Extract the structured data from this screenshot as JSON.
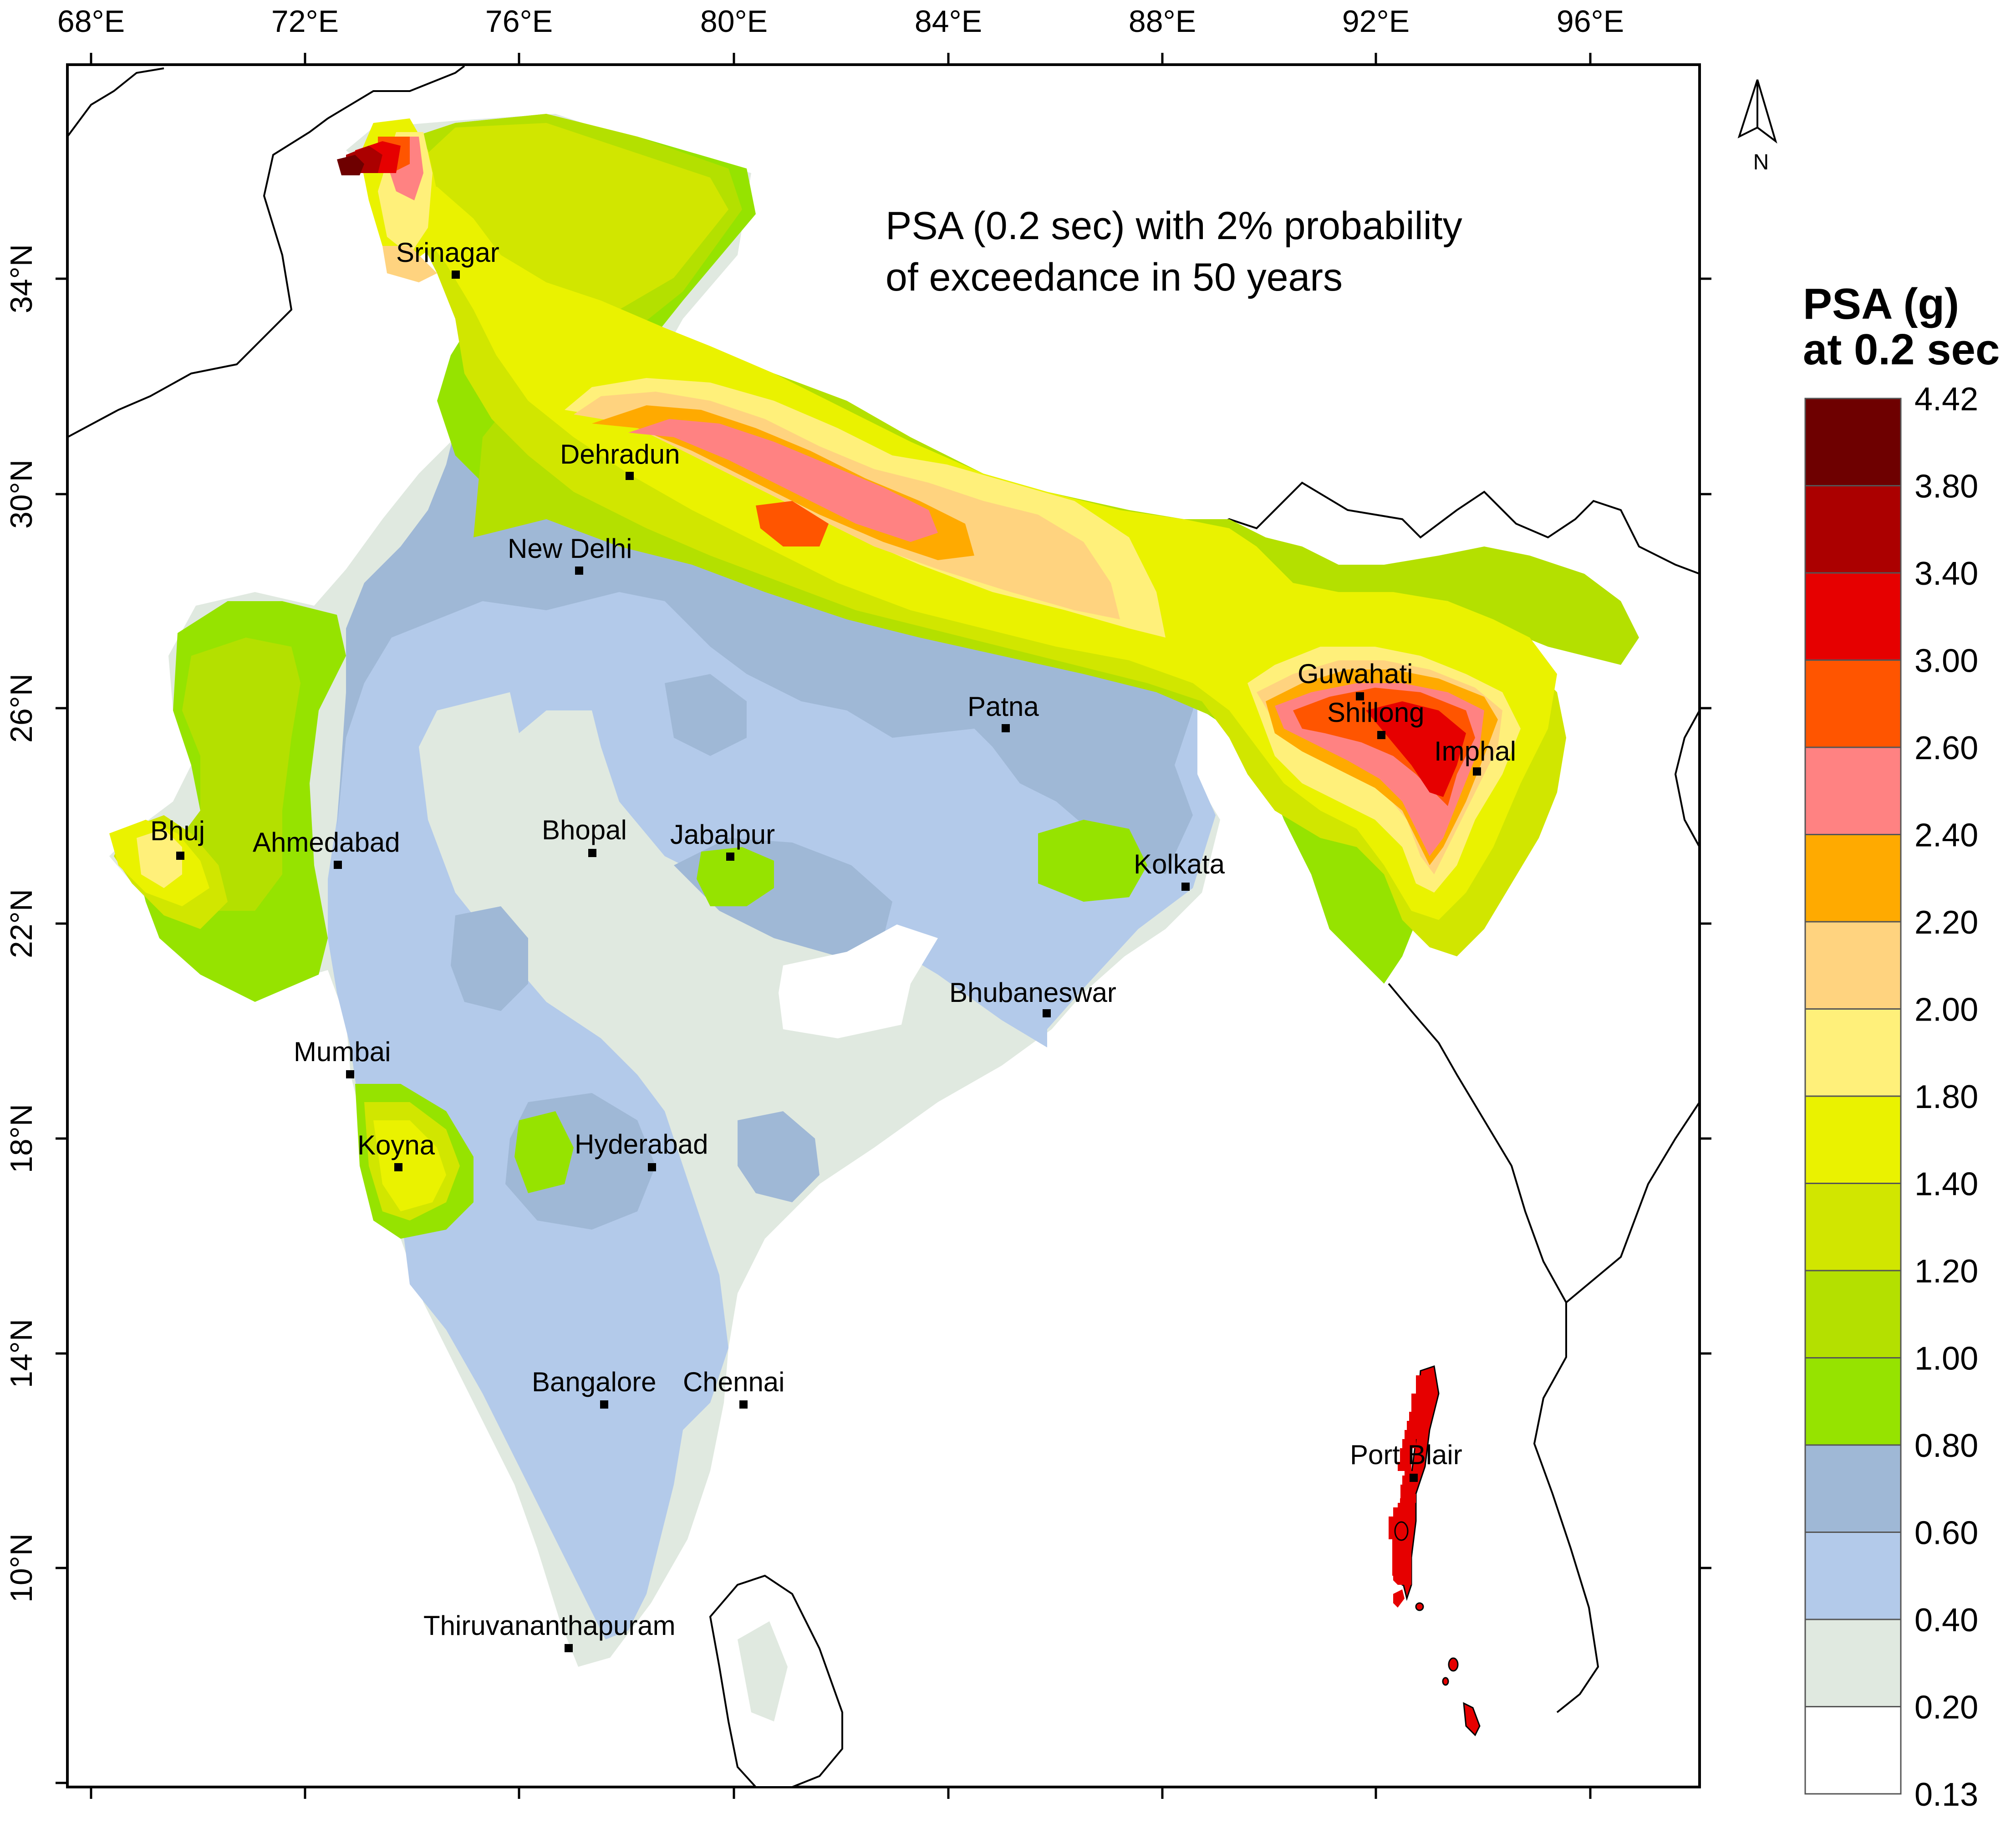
{
  "title_lines": [
    "PSA (0.2 sec) with 2% probability",
    "of exceedance in 50 years"
  ],
  "legend": {
    "title_lines": [
      "PSA (g)",
      "at 0.2 sec"
    ],
    "breaks": [
      "4.42",
      "3.80",
      "3.40",
      "3.00",
      "2.60",
      "2.40",
      "2.20",
      "2.00",
      "1.80",
      "1.40",
      "1.20",
      "1.00",
      "0.80",
      "0.60",
      "0.40",
      "0.20",
      "0.13"
    ],
    "colors": [
      "#6e0000",
      "#ab0000",
      "#e60000",
      "#ff5500",
      "#ff8282",
      "#ffaa00",
      "#ffd37f",
      "#fff07a",
      "#eaf200",
      "#d1e600",
      "#b4e000",
      "#96e300",
      "#9fb8d6",
      "#b3caea",
      "#e0e9e0",
      "#ffffff"
    ]
  },
  "axes": {
    "lon_labels": [
      "68°E",
      "72°E",
      "76°E",
      "80°E",
      "84°E",
      "88°E",
      "92°E",
      "96°E"
    ],
    "lat_labels": [
      "34°N",
      "30°N",
      "26°N",
      "22°N",
      "18°N",
      "14°N",
      "10°N"
    ]
  },
  "north_arrow_label": "N",
  "cities": [
    {
      "name": "Srinagar"
    },
    {
      "name": "Dehradun"
    },
    {
      "name": "New Delhi"
    },
    {
      "name": "Patna"
    },
    {
      "name": "Guwahati"
    },
    {
      "name": "Shillong"
    },
    {
      "name": "Imphal"
    },
    {
      "name": "Bhuj"
    },
    {
      "name": "Ahmedabad"
    },
    {
      "name": "Bhopal"
    },
    {
      "name": "Jabalpur"
    },
    {
      "name": "Kolkata"
    },
    {
      "name": "Bhubaneswar"
    },
    {
      "name": "Mumbai"
    },
    {
      "name": "Koyna"
    },
    {
      "name": "Hyderabad"
    },
    {
      "name": "Bangalore"
    },
    {
      "name": "Chennai"
    },
    {
      "name": "Port Blair"
    },
    {
      "name": "Thiruvananthapuram"
    }
  ]
}
